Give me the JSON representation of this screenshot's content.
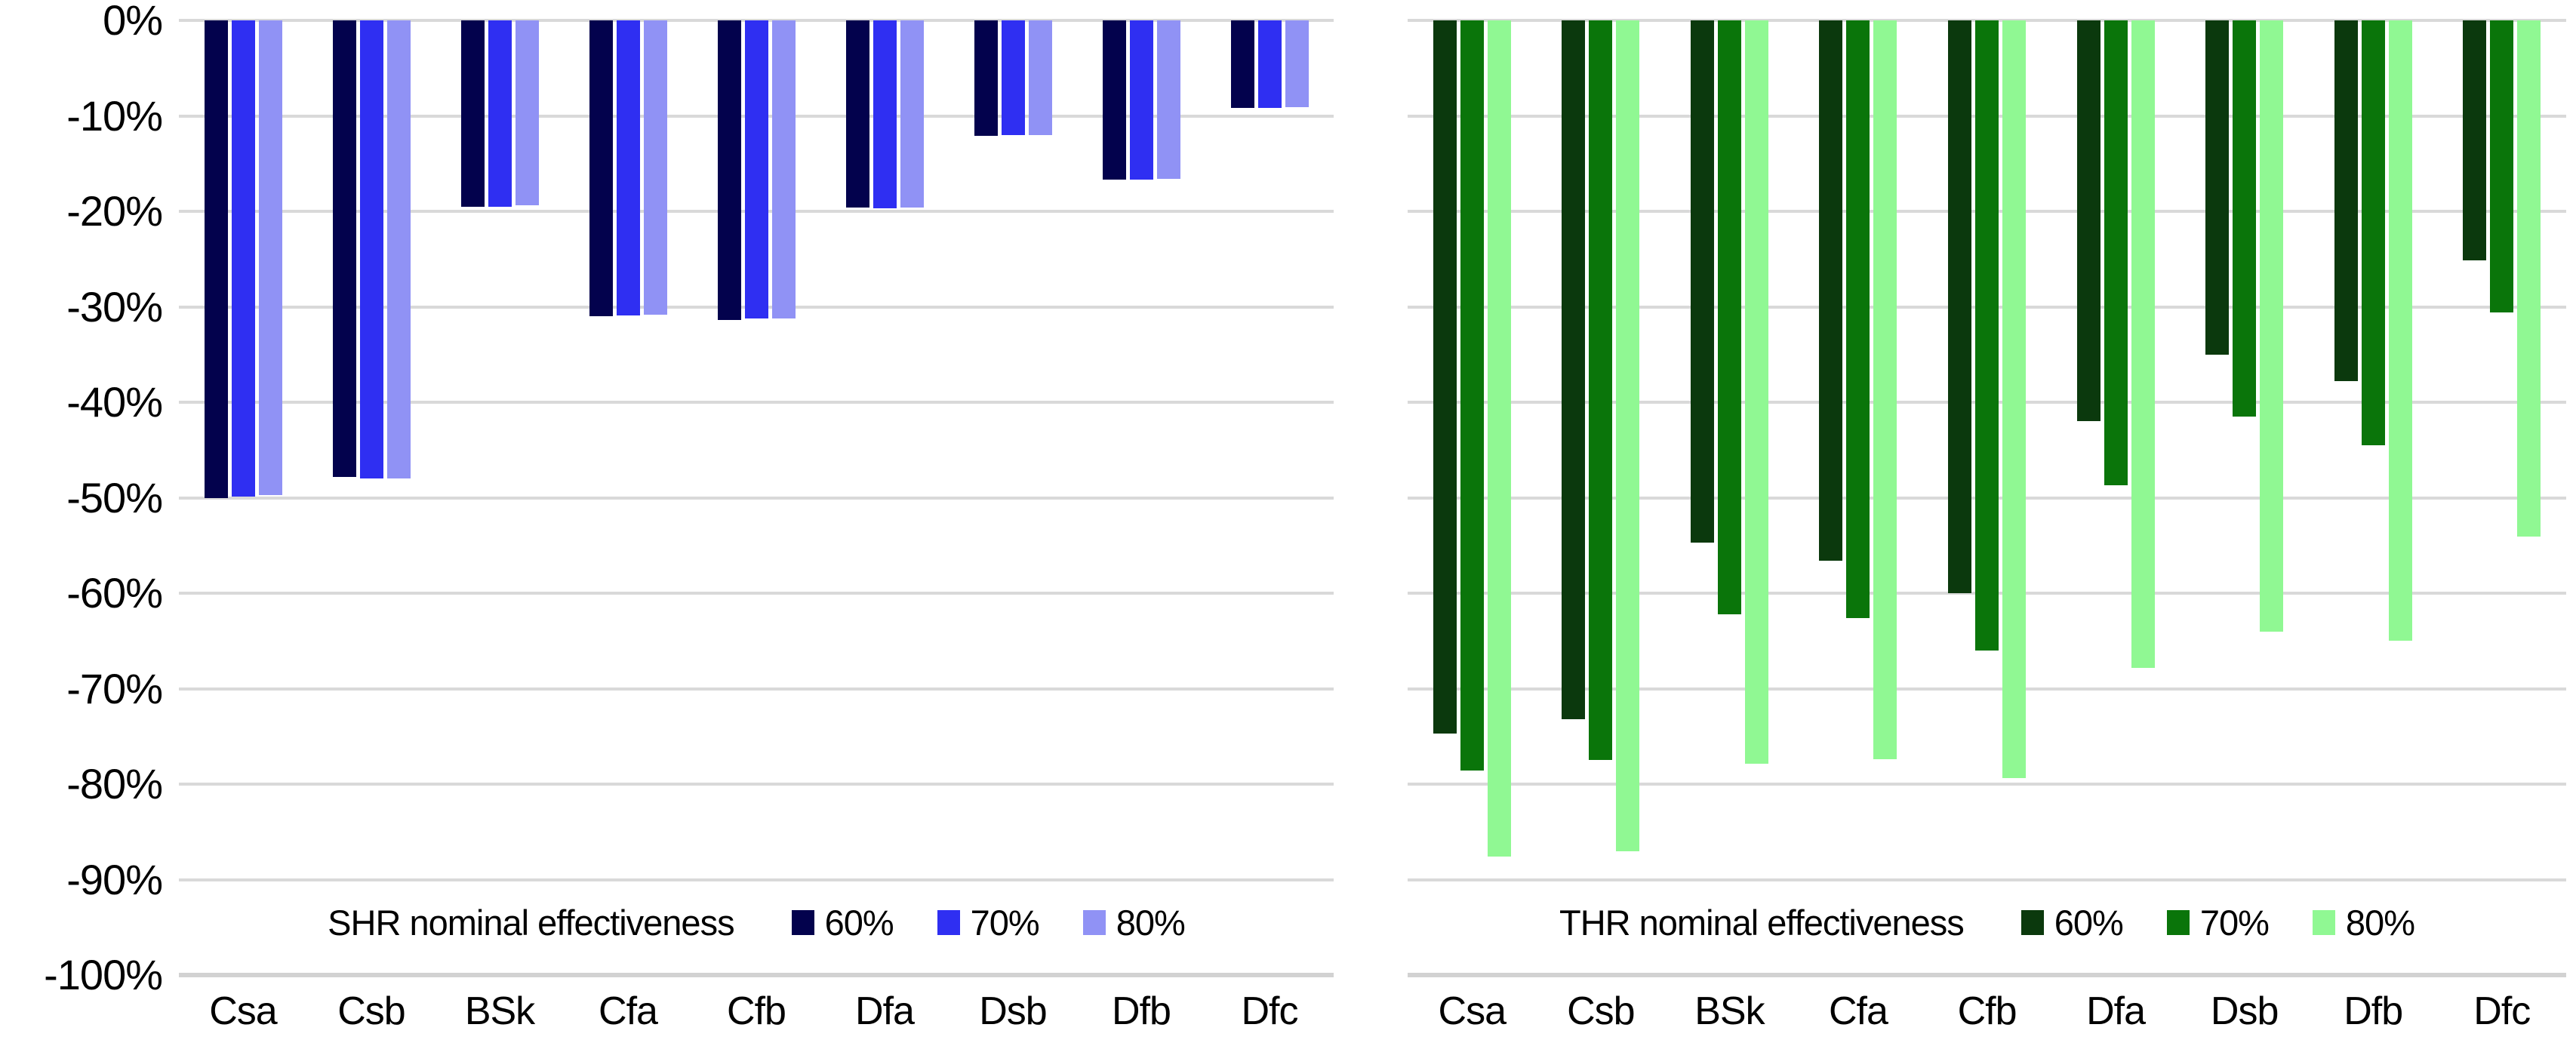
{
  "chart_data": [
    {
      "type": "bar",
      "id": "shr",
      "legend_title": "SHR nominal effectiveness",
      "categories": [
        "Csa",
        "Csb",
        "BSk",
        "Cfa",
        "Cfb",
        "Dfa",
        "Dsb",
        "Dfb",
        "Dfc"
      ],
      "series": [
        {
          "name": "60%",
          "color": "#03024d",
          "values": [
            -50.0,
            -47.8,
            -19.5,
            -31.0,
            -31.4,
            -19.6,
            -12.1,
            -16.7,
            -9.2
          ]
        },
        {
          "name": "70%",
          "color": "#2f2ff2",
          "values": [
            -49.9,
            -48.0,
            -19.5,
            -30.9,
            -31.2,
            -19.7,
            -12.0,
            -16.7,
            -9.2
          ]
        },
        {
          "name": "80%",
          "color": "#9092f5",
          "values": [
            -49.7,
            -48.0,
            -19.4,
            -30.8,
            -31.2,
            -19.6,
            -12.0,
            -16.6,
            -9.1
          ]
        }
      ],
      "ylabel": "",
      "xlabel": "",
      "ylim": [
        -100,
        0
      ],
      "y_tick_labels": [
        "0%",
        "-10%",
        "-20%",
        "-30%",
        "-40%",
        "-50%",
        "-60%",
        "-70%",
        "-80%",
        "-90%",
        "-100%"
      ],
      "show_y_tick_labels": true,
      "grid": true,
      "legend_position": "bottom-inside"
    },
    {
      "type": "bar",
      "id": "thr",
      "legend_title": "THR nominal effectiveness",
      "categories": [
        "Csa",
        "Csb",
        "BSk",
        "Cfa",
        "Cfb",
        "Dfa",
        "Dsb",
        "Dfb",
        "Dfc"
      ],
      "series": [
        {
          "name": "60%",
          "color": "#0b390d",
          "values": [
            -74.7,
            -73.2,
            -54.7,
            -56.6,
            -60.0,
            -42.0,
            -35.0,
            -37.8,
            -25.1
          ]
        },
        {
          "name": "70%",
          "color": "#0a750a",
          "values": [
            -78.6,
            -77.5,
            -62.2,
            -62.6,
            -66.0,
            -48.7,
            -41.5,
            -44.5,
            -30.6
          ]
        },
        {
          "name": "80%",
          "color": "#90f893",
          "values": [
            -87.6,
            -87.0,
            -77.9,
            -77.4,
            -79.4,
            -67.8,
            -64.0,
            -65.0,
            -54.1
          ]
        }
      ],
      "ylabel": "",
      "xlabel": "",
      "ylim": [
        -100,
        0
      ],
      "y_tick_labels": [],
      "show_y_tick_labels": false,
      "grid": true,
      "legend_position": "bottom-inside"
    }
  ],
  "style": {
    "gridline_color": "#d9d9d9",
    "background_color": "#ffffff",
    "text_color": "#000000"
  }
}
